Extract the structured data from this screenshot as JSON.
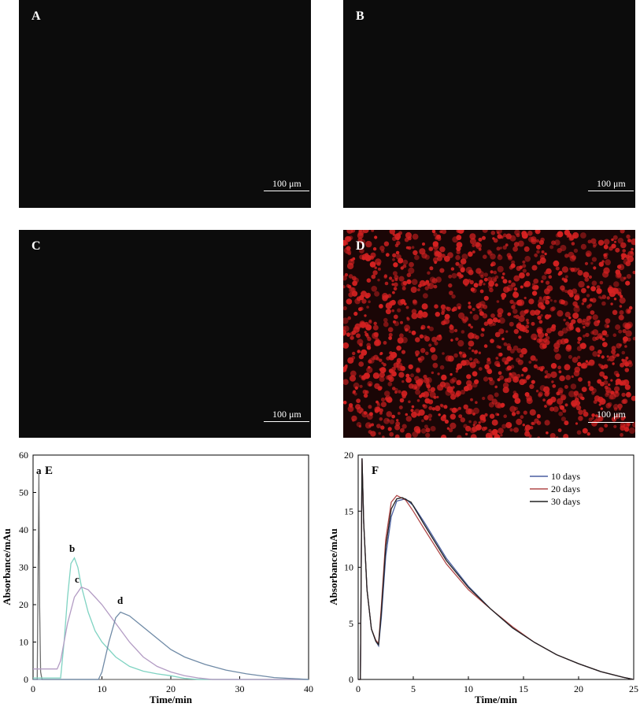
{
  "micrographs": [
    {
      "letter": "A",
      "scale": "100 μm"
    },
    {
      "letter": "B",
      "scale": "100 μm"
    },
    {
      "letter": "C",
      "scale": "100 μm"
    },
    {
      "letter": "D",
      "scale": "100 μm",
      "cell_color": "#d42121"
    }
  ],
  "chart_data": [
    {
      "panel": "E",
      "type": "line",
      "title": "",
      "xlabel": "Time/min",
      "ylabel": "Absorbance/mAu",
      "xlim": [
        0,
        40
      ],
      "ylim": [
        0,
        60
      ],
      "xticks": [
        "0",
        "10",
        "20",
        "30",
        "40"
      ],
      "yticks": [
        "0",
        "10",
        "20",
        "30",
        "40",
        "50",
        "60"
      ],
      "series": [
        {
          "name": "a",
          "color": "#6e6e6e",
          "x": [
            0,
            0.6,
            0.75,
            0.85,
            0.95,
            1.1,
            1.3,
            40
          ],
          "y": [
            0,
            0,
            35,
            55,
            20,
            2,
            0,
            0
          ]
        },
        {
          "name": "b",
          "color": "#7fd3c2",
          "x": [
            0,
            4,
            4.5,
            5,
            5.5,
            6,
            6.5,
            7,
            8,
            9,
            10,
            12,
            14,
            16,
            18,
            20,
            22,
            24,
            26,
            40
          ],
          "y": [
            0.4,
            0.4,
            10,
            22,
            31,
            32.5,
            30,
            25,
            18,
            13,
            10,
            6,
            3.5,
            2.2,
            1.5,
            1,
            0.3,
            0,
            0,
            0
          ]
        },
        {
          "name": "c",
          "color": "#b39cc4",
          "x": [
            0,
            3.5,
            4,
            5,
            6,
            7,
            8,
            9,
            10,
            12,
            14,
            16,
            18,
            20,
            22,
            24,
            26,
            40
          ],
          "y": [
            2.8,
            2.8,
            5,
            15,
            22,
            24.7,
            24,
            22,
            20,
            15,
            10,
            6,
            3.5,
            2,
            1,
            0.4,
            0,
            0
          ]
        },
        {
          "name": "d",
          "color": "#6f8aa6",
          "x": [
            0,
            9.5,
            10,
            11,
            12,
            12.7,
            14,
            16,
            18,
            20,
            22,
            25,
            28,
            31,
            35,
            38,
            40
          ],
          "y": [
            0,
            0,
            2,
            10,
            16.5,
            18,
            17,
            14,
            11,
            8,
            6,
            4,
            2.5,
            1.5,
            0.5,
            0.2,
            0
          ]
        }
      ],
      "annotations": [
        "a",
        "E",
        "b",
        "c",
        "d"
      ]
    },
    {
      "panel": "F",
      "type": "line",
      "title": "",
      "xlabel": "Time/min",
      "ylabel": "Absorbance/mAu",
      "xlim": [
        0,
        25
      ],
      "ylim": [
        0,
        20
      ],
      "xticks": [
        "0",
        "5",
        "10",
        "15",
        "20",
        "25"
      ],
      "yticks": [
        "0",
        "5",
        "10",
        "15",
        "20"
      ],
      "legend": "top-right",
      "series": [
        {
          "name": "10 days",
          "color": "#4a5fa0",
          "x": [
            0,
            0.2,
            0.35,
            0.5,
            0.8,
            1.2,
            1.6,
            1.85,
            2.1,
            2.5,
            3,
            3.5,
            4.3,
            5,
            6,
            8,
            10,
            12,
            14,
            16,
            18,
            20,
            22,
            24,
            25
          ],
          "y": [
            0,
            0,
            19.7,
            14,
            8,
            4.5,
            3.4,
            3.0,
            5.5,
            11,
            14.5,
            15.9,
            16.1,
            15.5,
            14,
            10.8,
            8.3,
            6.3,
            4.6,
            3.3,
            2.2,
            1.4,
            0.7,
            0.2,
            0
          ]
        },
        {
          "name": "20 days",
          "color": "#b04a4a",
          "x": [
            0,
            0.2,
            0.35,
            0.5,
            0.8,
            1.2,
            1.6,
            1.85,
            2.1,
            2.5,
            3,
            3.5,
            4.3,
            5,
            6,
            8,
            10,
            12,
            14,
            16,
            18,
            20,
            22,
            24,
            25
          ],
          "y": [
            0,
            0,
            19.7,
            14,
            8,
            4.5,
            3.5,
            3.2,
            6.5,
            12.5,
            15.8,
            16.4,
            16.0,
            15.0,
            13.4,
            10.3,
            8.0,
            6.3,
            4.7,
            3.3,
            2.2,
            1.4,
            0.7,
            0.2,
            0
          ]
        },
        {
          "name": "30 days",
          "color": "#222222",
          "x": [
            0,
            0.2,
            0.35,
            0.5,
            0.8,
            1.2,
            1.6,
            1.85,
            2.1,
            2.5,
            3,
            3.5,
            4,
            4.8,
            6,
            8,
            10,
            12,
            14,
            16,
            18,
            20,
            22,
            24,
            25
          ],
          "y": [
            0,
            0,
            19.7,
            14,
            8,
            4.5,
            3.4,
            3.1,
            6.0,
            11.8,
            15.2,
            16.1,
            16.2,
            15.8,
            13.8,
            10.6,
            8.2,
            6.3,
            4.6,
            3.3,
            2.2,
            1.4,
            0.7,
            0.2,
            0
          ]
        }
      ],
      "annotations": [
        "F"
      ]
    }
  ]
}
